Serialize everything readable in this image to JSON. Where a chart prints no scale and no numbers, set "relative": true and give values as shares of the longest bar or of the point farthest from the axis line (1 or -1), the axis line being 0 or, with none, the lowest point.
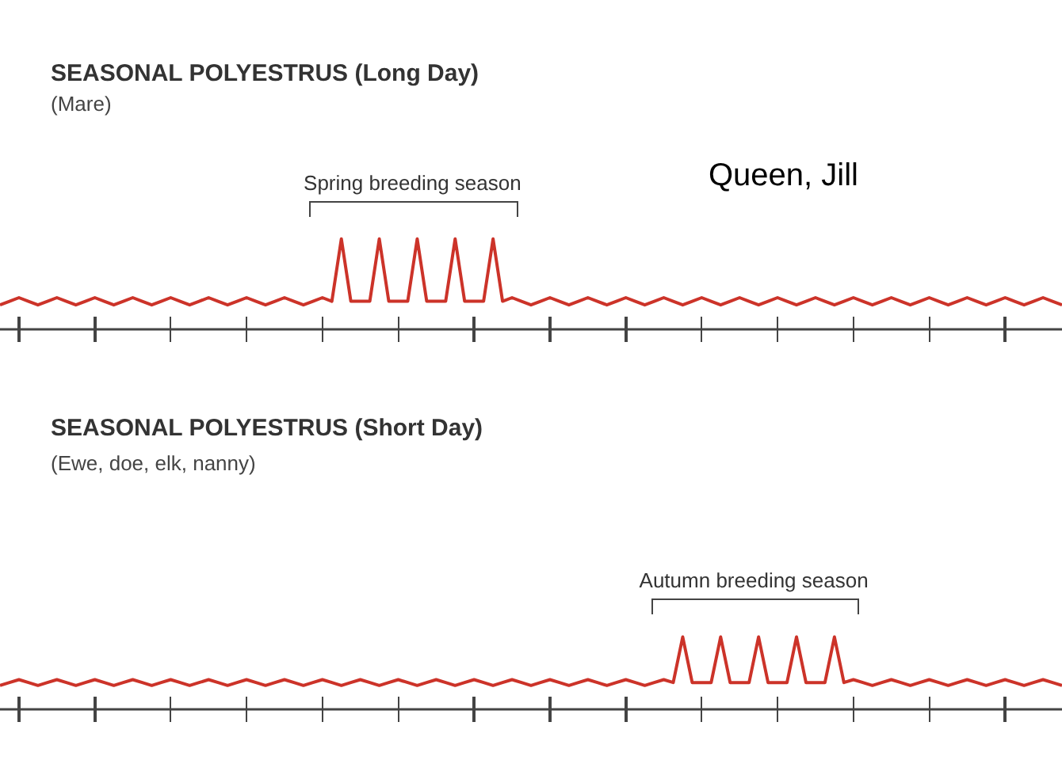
{
  "chart_data": [
    {
      "type": "line",
      "title": "SEASONAL POLYESTRUS (Long Day)",
      "subtitle": "(Mare)",
      "relative": true,
      "tick_labels": false,
      "grid": false,
      "marker": "none",
      "line_style": "solid",
      "annotations": [
        {
          "text": "Spring breeding season",
          "y": 1
        },
        "Queen, Jill"
      ],
      "categories": [
        null,
        null,
        null,
        null,
        null,
        null,
        null,
        null,
        null,
        null,
        null,
        null,
        null,
        null,
        null,
        null,
        null,
        null,
        null,
        null,
        null,
        null,
        null,
        null,
        null,
        null,
        null,
        null,
        null,
        null,
        null,
        null,
        null,
        null,
        null,
        null,
        null,
        null,
        null,
        null,
        null,
        null,
        null,
        null,
        null,
        null,
        null,
        null,
        null,
        null,
        null,
        null,
        null,
        null,
        null,
        null,
        null,
        null,
        null,
        null,
        null,
        null,
        null,
        null,
        null,
        null,
        null,
        null,
        null,
        null,
        null,
        null,
        null,
        null,
        null,
        null,
        null,
        null,
        null,
        null,
        null,
        null,
        null,
        null,
        null,
        null,
        null,
        null,
        null,
        null,
        null,
        null,
        null,
        null,
        null,
        null,
        null,
        null,
        null,
        null,
        null,
        null,
        null,
        null,
        null,
        null,
        null,
        null,
        null,
        null,
        null,
        null,
        null
      ],
      "series": [
        {
          "color": "#cc3329",
          "values": [
            0.27,
            0.31,
            0.35,
            0.31,
            0.27,
            0.31,
            0.35,
            0.31,
            0.27,
            0.31,
            0.35,
            0.31,
            0.27,
            0.31,
            0.35,
            0.31,
            0.27,
            0.31,
            0.35,
            0.31,
            0.27,
            0.31,
            0.35,
            0.31,
            0.27,
            0.31,
            0.35,
            0.31,
            0.27,
            0.31,
            0.35,
            0.31,
            0.27,
            0.31,
            0.35,
            0.31,
            1,
            0.31,
            0.31,
            0.31,
            1,
            0.31,
            0.31,
            0.31,
            1,
            0.31,
            0.31,
            0.31,
            1,
            0.31,
            0.31,
            0.31,
            1,
            0.31,
            0.35,
            0.31,
            0.27,
            0.31,
            0.35,
            0.31,
            0.27,
            0.31,
            0.35,
            0.31,
            0.27,
            0.31,
            0.35,
            0.31,
            0.27,
            0.31,
            0.35,
            0.31,
            0.27,
            0.31,
            0.35,
            0.31,
            0.27,
            0.31,
            0.35,
            0.31,
            0.27,
            0.31,
            0.35,
            0.31,
            0.27,
            0.31,
            0.35,
            0.31,
            0.27,
            0.31,
            0.35,
            0.31,
            0.27,
            0.31,
            0.35,
            0.31,
            0.27,
            0.31,
            0.35,
            0.31,
            0.27,
            0.31,
            0.35,
            0.31,
            0.27,
            0.31,
            0.35,
            0.31,
            0.27,
            0.31,
            0.35,
            0.31,
            0.27
          ]
        }
      ]
    },
    {
      "type": "line",
      "title": "SEASONAL POLYESTRUS (Short Day)",
      "subtitle": "(Ewe, doe, elk, nanny)",
      "relative": true,
      "tick_labels": false,
      "grid": false,
      "marker": "none",
      "line_style": "solid",
      "annotations": [
        {
          "text": "Autumn breeding season",
          "y": 1
        }
      ],
      "categories": [
        null,
        null,
        null,
        null,
        null,
        null,
        null,
        null,
        null,
        null,
        null,
        null,
        null,
        null,
        null,
        null,
        null,
        null,
        null,
        null,
        null,
        null,
        null,
        null,
        null,
        null,
        null,
        null,
        null,
        null,
        null,
        null,
        null,
        null,
        null,
        null,
        null,
        null,
        null,
        null,
        null,
        null,
        null,
        null,
        null,
        null,
        null,
        null,
        null,
        null,
        null,
        null,
        null,
        null,
        null,
        null,
        null,
        null,
        null,
        null,
        null,
        null,
        null,
        null,
        null,
        null,
        null,
        null,
        null,
        null,
        null,
        null,
        null,
        null,
        null,
        null,
        null,
        null,
        null,
        null,
        null,
        null,
        null,
        null,
        null,
        null,
        null,
        null,
        null,
        null,
        null,
        null,
        null,
        null,
        null,
        null,
        null,
        null,
        null,
        null,
        null,
        null,
        null,
        null,
        null,
        null,
        null,
        null,
        null,
        null,
        null,
        null,
        null
      ],
      "series": [
        {
          "color": "#cc3329",
          "values": [
            0.33,
            0.37,
            0.41,
            0.37,
            0.33,
            0.37,
            0.41,
            0.37,
            0.33,
            0.37,
            0.41,
            0.37,
            0.33,
            0.37,
            0.41,
            0.37,
            0.33,
            0.37,
            0.41,
            0.37,
            0.33,
            0.37,
            0.41,
            0.37,
            0.33,
            0.37,
            0.41,
            0.37,
            0.33,
            0.37,
            0.41,
            0.37,
            0.33,
            0.37,
            0.41,
            0.37,
            0.33,
            0.37,
            0.41,
            0.37,
            0.33,
            0.37,
            0.41,
            0.37,
            0.33,
            0.37,
            0.41,
            0.37,
            0.33,
            0.37,
            0.41,
            0.37,
            0.33,
            0.37,
            0.41,
            0.37,
            0.33,
            0.37,
            0.41,
            0.37,
            0.33,
            0.37,
            0.41,
            0.37,
            0.33,
            0.37,
            0.41,
            0.37,
            0.33,
            0.37,
            0.41,
            0.37,
            1,
            0.37,
            0.37,
            0.37,
            1,
            0.37,
            0.37,
            0.37,
            1,
            0.37,
            0.37,
            0.37,
            1,
            0.37,
            0.37,
            0.37,
            1,
            0.37,
            0.41,
            0.37,
            0.33,
            0.37,
            0.41,
            0.37,
            0.33,
            0.37,
            0.41,
            0.37,
            0.33,
            0.37,
            0.41,
            0.37,
            0.33,
            0.37,
            0.41,
            0.37,
            0.33,
            0.37,
            0.41,
            0.37,
            0.33
          ]
        }
      ]
    }
  ]
}
